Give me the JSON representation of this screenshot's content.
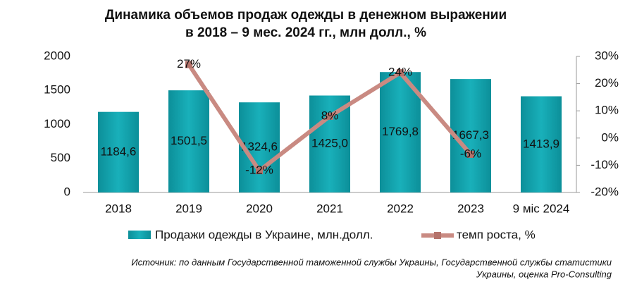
{
  "chart_data": {
    "type": "bar",
    "title": [
      "Динамика объемов продаж одежды в денежном выражении",
      "в 2018 – 9 мес. 2024 гг., млн долл., %"
    ],
    "categories": [
      "2018",
      "2019",
      "2020",
      "2021",
      "2022",
      "2023",
      "9 міс 2024"
    ],
    "series": [
      {
        "name": "Продажи одежды в Украине, млн.долл.",
        "type": "bar",
        "color": "#13a3ae",
        "values": [
          1184.6,
          1501.5,
          1324.6,
          1425.0,
          1769.8,
          1667.3,
          1413.9
        ],
        "value_labels": [
          "1184,6",
          "1501,5",
          "1324,6",
          "1425,0",
          "1769,8",
          "1667,3",
          "1413,9"
        ]
      },
      {
        "name": "темп роста, %",
        "type": "line",
        "axis": "y2",
        "color": "#c98a82",
        "marker_color": "#b5736b",
        "values": [
          null,
          27,
          -12,
          8,
          24,
          -6,
          null
        ],
        "value_labels": [
          null,
          "27%",
          "-12%",
          "8%",
          "24%",
          "-6%",
          null
        ]
      }
    ],
    "ylim": [
      0,
      2000
    ],
    "yticks": [
      0,
      500,
      1000,
      1500,
      2000
    ],
    "y2lim": [
      -20,
      30
    ],
    "y2ticks": [
      {
        "value": -20,
        "label": "-20%"
      },
      {
        "value": -10,
        "label": "-10%"
      },
      {
        "value": 0,
        "label": "0%"
      },
      {
        "value": 10,
        "label": "10%"
      },
      {
        "value": 20,
        "label": "20%"
      },
      {
        "value": 30,
        "label": "30%"
      }
    ],
    "legend": "bottom",
    "source": [
      "Источник: по данным Государственной таможенной службы Украины, Государственной службы статистики",
      "Украины, оценка Pro-Consulting"
    ]
  }
}
